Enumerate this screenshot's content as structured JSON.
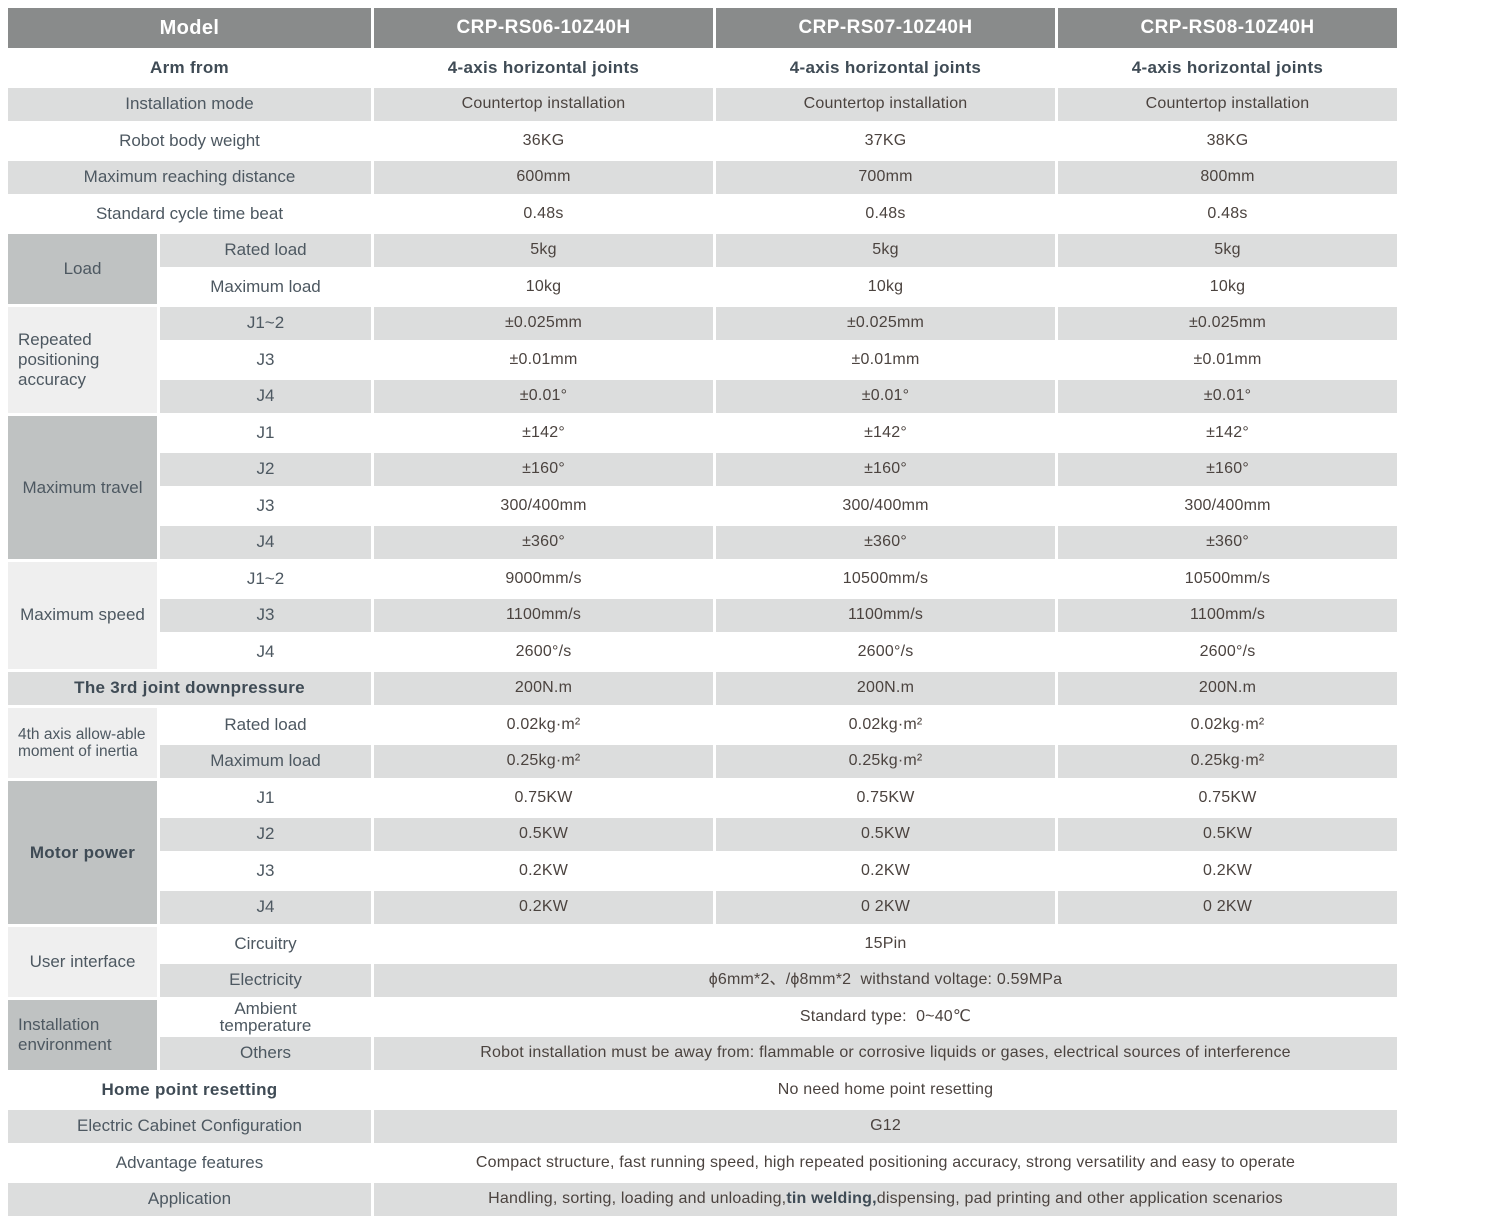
{
  "colors": {
    "header_bg": "#898b8b",
    "row_shade": "#dcdddd",
    "group_medium": "#bfc2c2",
    "group_light": "#efefef",
    "label_text": "#4d5861",
    "value_text": "#4b433f"
  },
  "header": {
    "model_label": "Model",
    "models": [
      "CRP-RS06-10Z40H",
      "CRP-RS07-10Z40H",
      "CRP-RS08-10Z40H"
    ]
  },
  "arm_from": {
    "label": "Arm from",
    "values": [
      "4-axis horizontal joints",
      "4-axis horizontal joints",
      "4-axis horizontal joints"
    ]
  },
  "installation_mode": {
    "label": "Installation mode",
    "values": [
      "Countertop installation",
      "Countertop installation",
      "Countertop installation"
    ]
  },
  "robot_body_weight": {
    "label": "Robot body weight",
    "values": [
      "36KG",
      "37KG",
      "38KG"
    ]
  },
  "maximum_reaching_distance": {
    "label": "Maximum reaching distance",
    "values": [
      "600mm",
      "700mm",
      "800mm"
    ]
  },
  "standard_cycle_time_beat": {
    "label": "Standard cycle time beat",
    "values": [
      "0.48s",
      "0.48s",
      "0.48s"
    ]
  },
  "load": {
    "label": "Load",
    "rows": [
      {
        "label": "Rated load",
        "values": [
          "5kg",
          "5kg",
          "5kg"
        ]
      },
      {
        "label": "Maximum load",
        "values": [
          "10kg",
          "10kg",
          "10kg"
        ]
      }
    ]
  },
  "repeated_positioning_accuracy": {
    "label": "Repeated positioning accuracy",
    "rows": [
      {
        "label": "J1~2",
        "values": [
          "±0.025mm",
          "±0.025mm",
          "±0.025mm"
        ]
      },
      {
        "label": "J3",
        "values": [
          "±0.01mm",
          "±0.01mm",
          "±0.01mm"
        ]
      },
      {
        "label": "J4",
        "values": [
          "±0.01°",
          "±0.01°",
          "±0.01°"
        ]
      }
    ]
  },
  "maximum_travel": {
    "label": "Maximum travel",
    "rows": [
      {
        "label": "J1",
        "values": [
          "±142°",
          "±142°",
          "±142°"
        ]
      },
      {
        "label": "J2",
        "values": [
          "±160°",
          "±160°",
          "±160°"
        ]
      },
      {
        "label": "J3",
        "values": [
          "300/400mm",
          "300/400mm",
          "300/400mm"
        ]
      },
      {
        "label": "J4",
        "values": [
          "±360°",
          "±360°",
          "±360°"
        ]
      }
    ]
  },
  "maximum_speed": {
    "label": "Maximum speed",
    "rows": [
      {
        "label": "J1~2",
        "values": [
          "9000mm/s",
          "10500mm/s",
          "10500mm/s"
        ]
      },
      {
        "label": "J3",
        "values": [
          "1100mm/s",
          "1100mm/s",
          "1100mm/s"
        ]
      },
      {
        "label": "J4",
        "values": [
          "2600°/s",
          "2600°/s",
          "2600°/s"
        ]
      }
    ]
  },
  "third_joint_downpressure": {
    "label": "The 3rd joint downpressure",
    "values": [
      "200N.m",
      "200N.m",
      "200N.m"
    ]
  },
  "fourth_axis_moment_of_inertia": {
    "label": "4th axis allow-able moment of inertia",
    "rows": [
      {
        "label": "Rated load",
        "values": [
          "0.02kg·m²",
          "0.02kg·m²",
          "0.02kg·m²"
        ]
      },
      {
        "label": "Maximum load",
        "values": [
          "0.25kg·m²",
          "0.25kg·m²",
          "0.25kg·m²"
        ]
      }
    ]
  },
  "motor_power": {
    "label": "Motor power",
    "rows": [
      {
        "label": "J1",
        "values": [
          "0.75KW",
          "0.75KW",
          "0.75KW"
        ]
      },
      {
        "label": "J2",
        "values": [
          "0.5KW",
          "0.5KW",
          "0.5KW"
        ]
      },
      {
        "label": "J3",
        "values": [
          "0.2KW",
          "0.2KW",
          "0.2KW"
        ]
      },
      {
        "label": "J4",
        "values": [
          "0.2KW",
          "0 2KW",
          "0 2KW"
        ]
      }
    ]
  },
  "user_interface": {
    "label": "User interface",
    "rows": [
      {
        "label": "Circuitry",
        "value": "15Pin"
      },
      {
        "label": "Electricity",
        "value": "ϕ6mm*2、/ϕ8mm*2  withstand voltage: 0.59MPa"
      }
    ]
  },
  "installation_environment": {
    "label": "Installation environment",
    "rows": [
      {
        "label": "Ambient temperature",
        "value": "Standard type:  0~40℃"
      },
      {
        "label": "Others",
        "value": "Robot installation must be away from: flammable or corrosive liquids or gases, electrical sources of interference"
      }
    ]
  },
  "home_point_resetting": {
    "label": "Home point resetting",
    "value": "No need home point resetting"
  },
  "electric_cabinet_configuration": {
    "label": "Electric Cabinet Configuration",
    "value": "G12"
  },
  "advantage_features": {
    "label": "Advantage features",
    "value": "Compact structure, fast running speed, high repeated positioning accuracy, strong versatility and easy to operate"
  },
  "application": {
    "label": "Application",
    "value_pre": "Handling, sorting, loading and unloading,",
    "value_bold": "tin welding,",
    "value_post": "dispensing, pad printing and other application scenarios"
  }
}
